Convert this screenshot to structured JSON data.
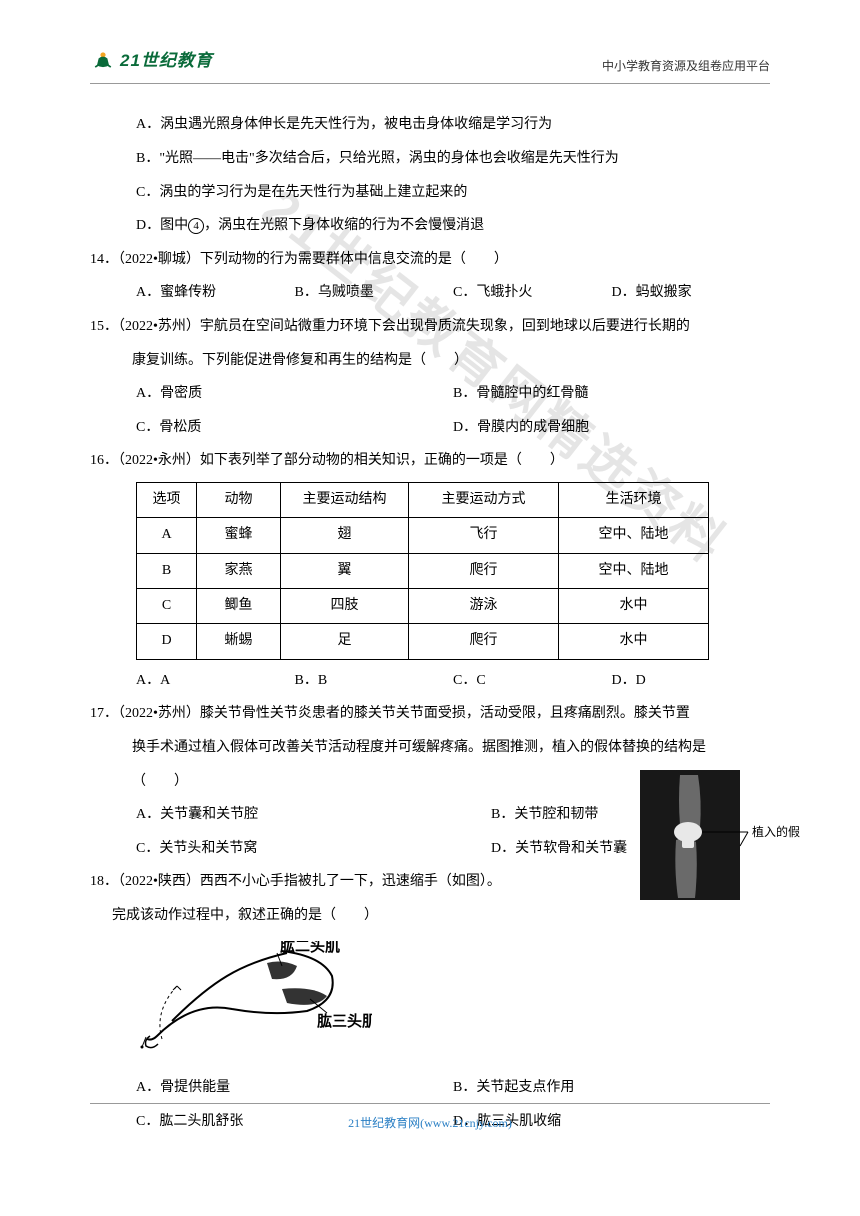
{
  "header": {
    "logo_text": "21世纪教育",
    "right_text": "中小学教育资源及组卷应用平台"
  },
  "watermark": "21世纪教育网精选资料",
  "q13": {
    "A": "A．涡虫遇光照身体伸长是先天性行为，被电击身体收缩是学习行为",
    "B": "B．\"光照——电击\"多次结合后，只给光照，涡虫的身体也会收缩是先天性行为",
    "C": "C．涡虫的学习行为是在先天性行为基础上建立起来的",
    "D_pre": "D．图中",
    "D_num": "4",
    "D_post": "，涡虫在光照下身体收缩的行为不会慢慢消退"
  },
  "q14": {
    "stem": "14．（2022•聊城）下列动物的行为需要群体中信息交流的是（　　）",
    "A": "A．蜜蜂传粉",
    "B": "B．乌贼喷墨",
    "C": "C．飞蛾扑火",
    "D": "D．蚂蚁搬家"
  },
  "q15": {
    "stem1": "15．（2022•苏州）宇航员在空间站微重力环境下会出现骨质流失现象，回到地球以后要进行长期的",
    "stem2": "康复训练。下列能促进骨修复和再生的结构是（　　）",
    "A": "A．骨密质",
    "B": "B．骨髓腔中的红骨髓",
    "C": "C．骨松质",
    "D": "D．骨膜内的成骨细胞"
  },
  "q16": {
    "stem": "16．（2022•永州）如下表列举了部分动物的相关知识，正确的一项是（　　）",
    "cols": [
      "选项",
      "动物",
      "主要运动结构",
      "主要运动方式",
      "生活环境"
    ],
    "widths": [
      60,
      84,
      128,
      150,
      150
    ],
    "rows": [
      [
        "A",
        "蜜蜂",
        "翅",
        "飞行",
        "空中、陆地"
      ],
      [
        "B",
        "家燕",
        "翼",
        "爬行",
        "空中、陆地"
      ],
      [
        "C",
        "鲫鱼",
        "四肢",
        "游泳",
        "水中"
      ],
      [
        "D",
        "蜥蜴",
        "足",
        "爬行",
        "水中"
      ]
    ],
    "A": "A．A",
    "B": "B．B",
    "C": "C．C",
    "D": "D．D"
  },
  "q17": {
    "stem1": "17．（2022•苏州）膝关节骨性关节炎患者的膝关节关节面受损，活动受限，且疼痛剧烈。膝关节置",
    "stem2": "换手术通过植入假体可改善关节活动程度并可缓解疼痛。据图推测，植入的假体替换的结构是",
    "stem3": "（　　）",
    "A": "A．关节囊和关节腔",
    "B": "B．关节腔和韧带",
    "C": "C．关节头和关节窝",
    "D": "D．关节软骨和关节囊",
    "img_label": "植入的假体"
  },
  "q18": {
    "stem1": "18．（2022•陕西）西西不小心手指被扎了一下，迅速缩手（如图）。",
    "stem2": "完成该动作过程中，叙述正确的是（　　）",
    "arm_label1": "肱二头肌",
    "arm_label2": "肱三头肌",
    "A": "A．骨提供能量",
    "B": "B．关节起支点作用",
    "C": "C．肱二头肌舒张",
    "D": "D．肱三头肌收缩"
  },
  "footer": {
    "text": "21世纪教育网(www.21cnjy.com)"
  }
}
